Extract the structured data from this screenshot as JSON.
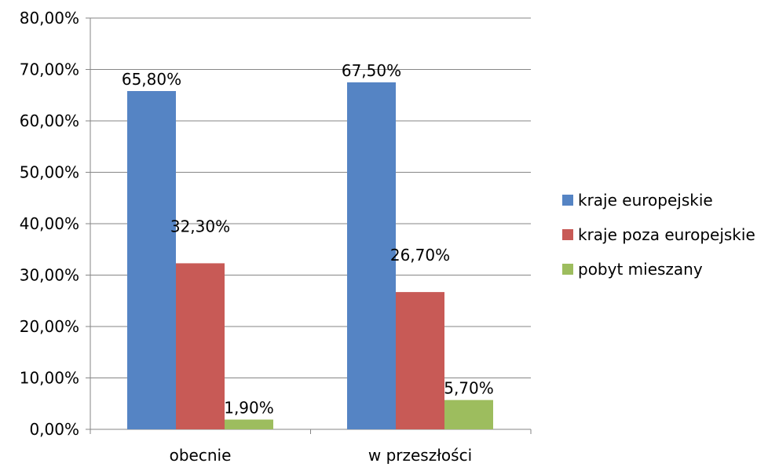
{
  "chart_data": {
    "type": "bar",
    "categories": [
      "obecnie",
      "w przeszłości"
    ],
    "series": [
      {
        "name": "kraje europejskie",
        "values": [
          65.8,
          67.5
        ],
        "labels": [
          "65,80%",
          "67,50%"
        ],
        "color": "#5584C4"
      },
      {
        "name": "kraje poza europejskie",
        "values": [
          32.3,
          26.7
        ],
        "labels": [
          "32,30%",
          "26,70%"
        ],
        "color": "#C85A56"
      },
      {
        "name": "pobyt mieszany",
        "values": [
          1.9,
          5.7
        ],
        "labels": [
          "1,90%",
          "5,70%"
        ],
        "color": "#9DBD5E"
      }
    ],
    "ylim": [
      0,
      80
    ],
    "y_ticks": [
      "0,00%",
      "10,00%",
      "20,00%",
      "30,00%",
      "40,00%",
      "50,00%",
      "60,00%",
      "70,00%",
      "80,00%"
    ],
    "grid": true,
    "legend_position": "right",
    "title": "",
    "xlabel": "",
    "ylabel": ""
  }
}
